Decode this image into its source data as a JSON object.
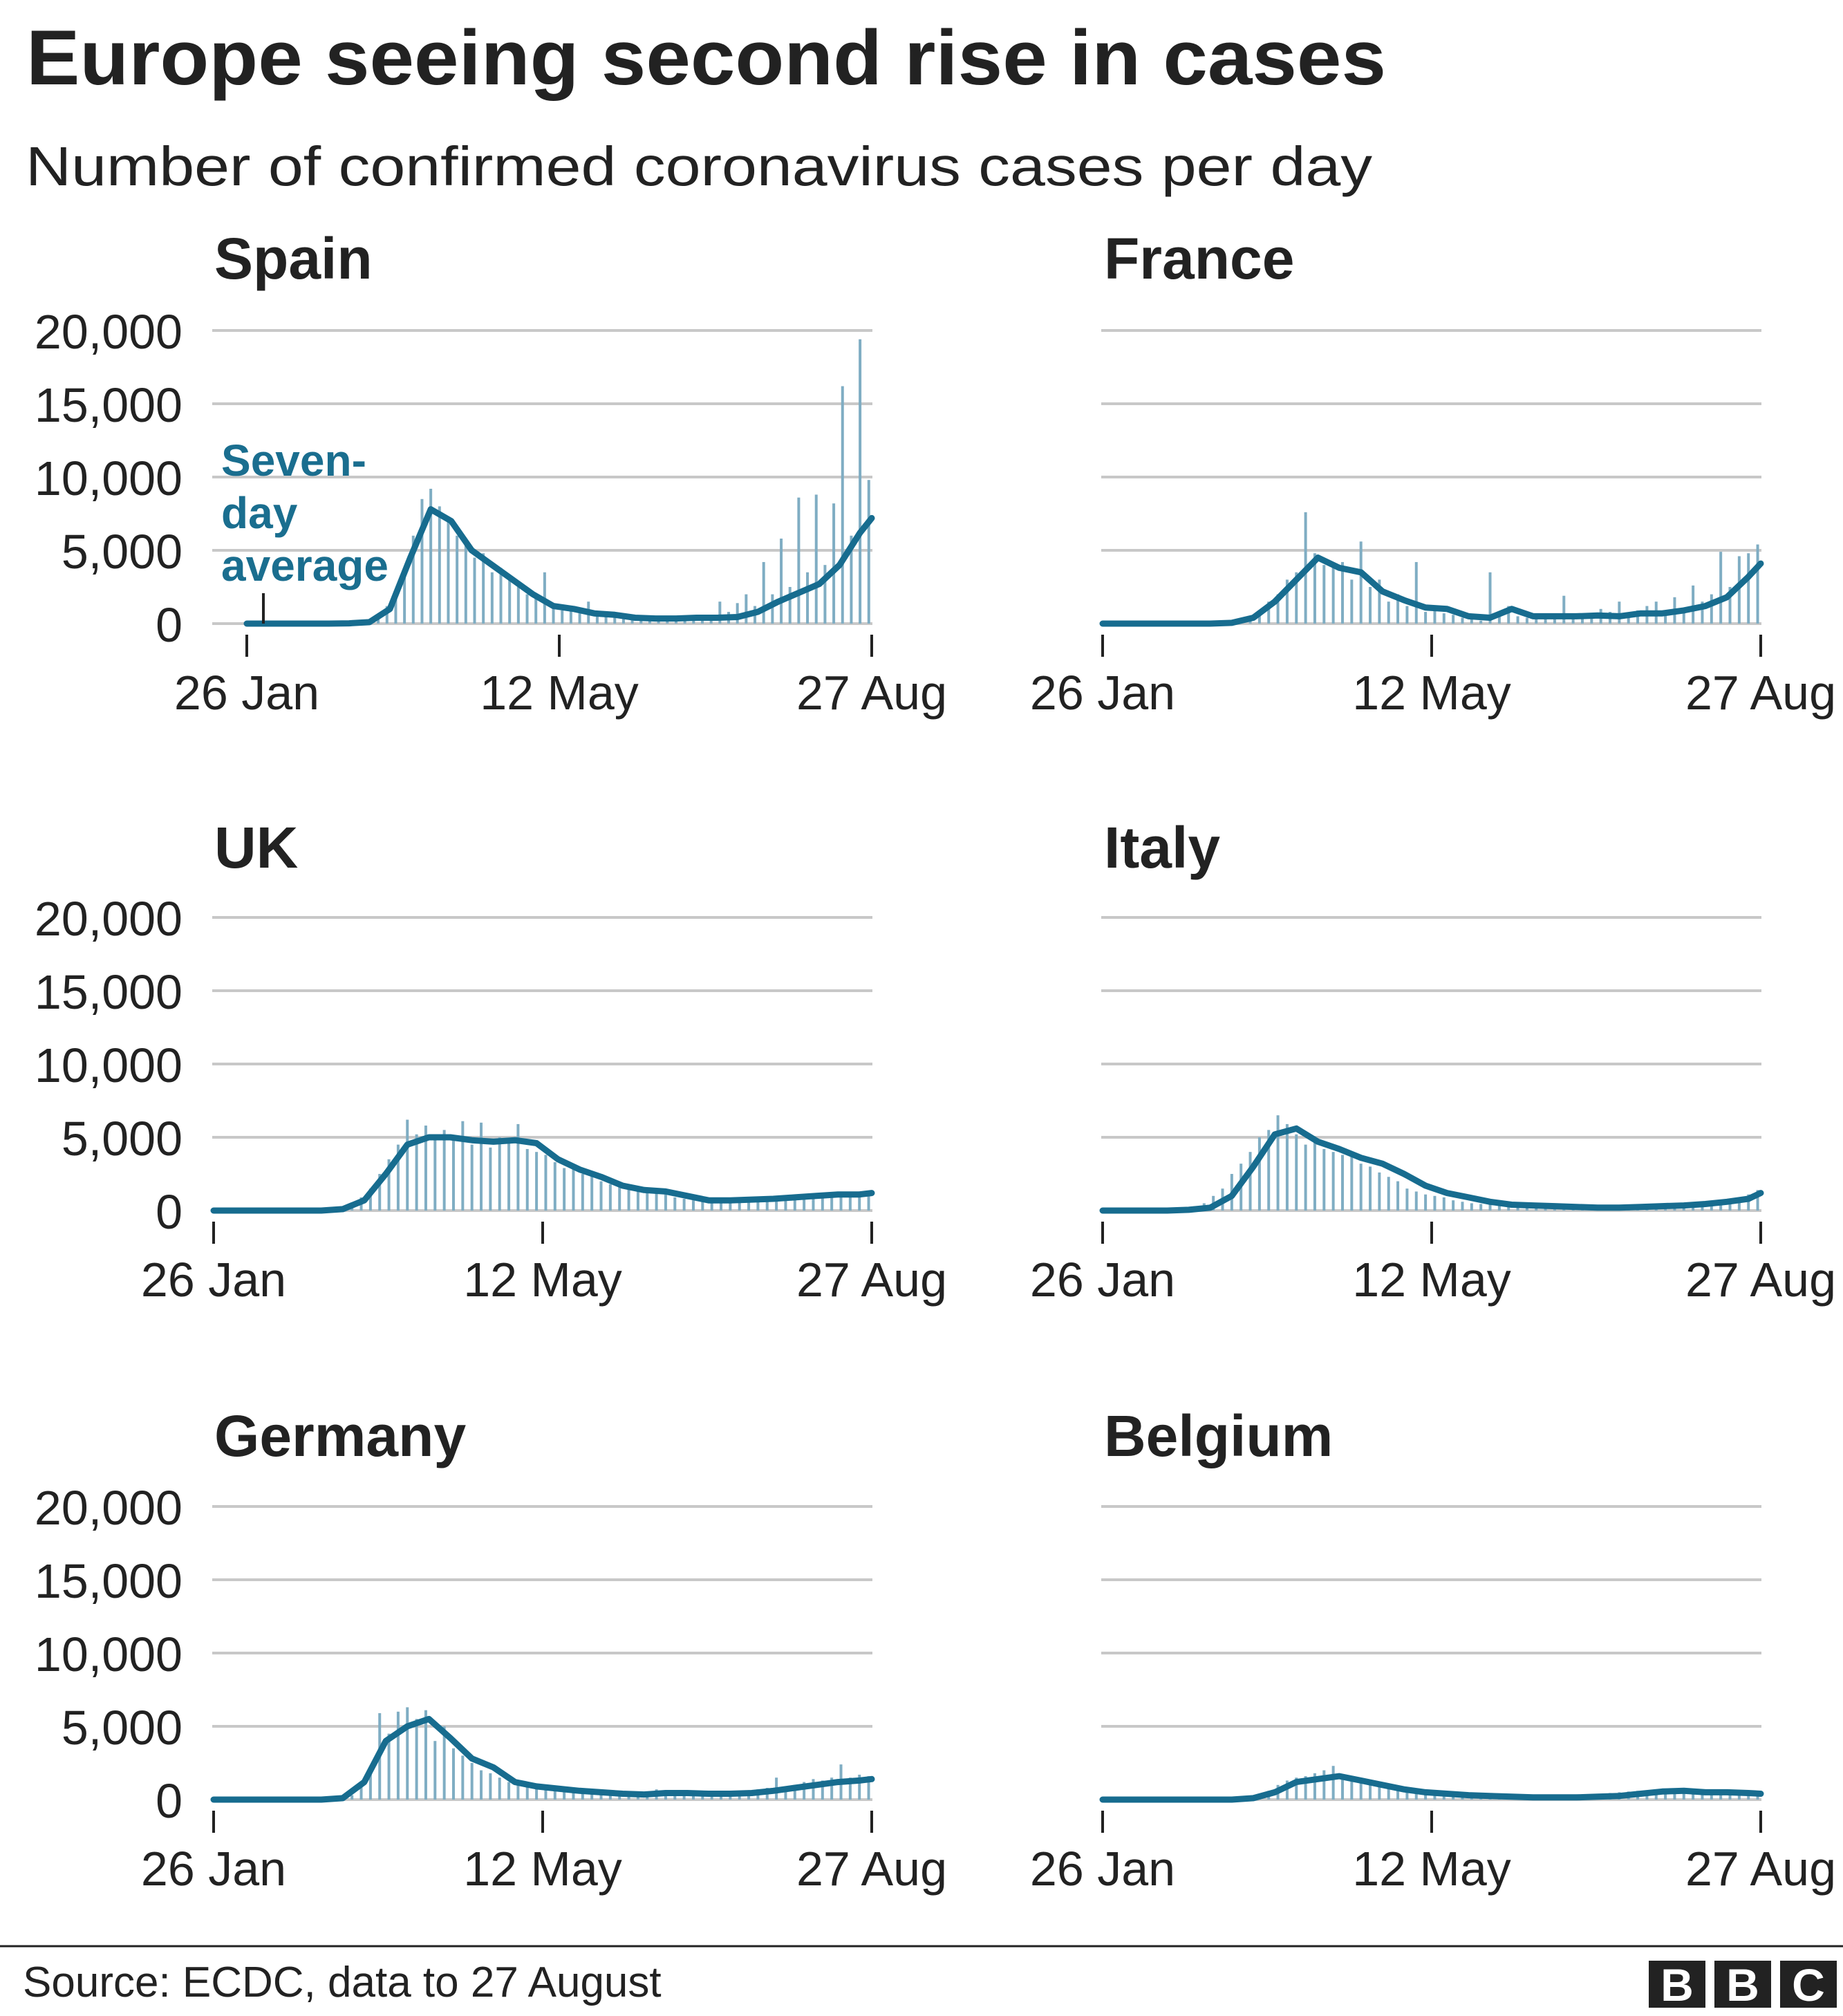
{
  "title": "Europe seeing second rise in cases",
  "subtitle": "Number of confirmed coronavirus cases per day",
  "source": "Source: ECDC, data to 27 August",
  "logo": {
    "letters": [
      "B",
      "B",
      "C"
    ]
  },
  "annotation": {
    "lines": [
      "Seven-",
      "day",
      "average"
    ]
  },
  "colors": {
    "line": "#176c8f",
    "bars": "#7fadc3",
    "grid": "#c8c8c8",
    "text": "#222222"
  },
  "chart_data": {
    "type": "bar+line",
    "title": "Europe seeing second rise in cases",
    "subtitle": "Number of confirmed coronavirus cases per day",
    "ylim": [
      0,
      20000
    ],
    "y_ticks": [
      0,
      5000,
      10000,
      15000,
      20000
    ],
    "y_tick_labels": [
      "0",
      "5,000",
      "10,000",
      "15,000",
      "20,000"
    ],
    "x_ticks_days": [
      0,
      107,
      214
    ],
    "x_tick_labels": [
      "26 Jan",
      "12 May",
      "27 Aug"
    ],
    "x_range_days": [
      0,
      214
    ],
    "grid": true,
    "legend": "Seven-day average annotation on Spain panel",
    "avg_days": [
      0,
      7,
      14,
      21,
      28,
      35,
      42,
      49,
      56,
      63,
      70,
      77,
      84,
      91,
      98,
      105,
      112,
      119,
      126,
      133,
      140,
      147,
      154,
      161,
      168,
      175,
      182,
      189,
      196,
      203,
      210,
      214
    ],
    "bar_day_step": 3,
    "panels": [
      {
        "name": "Spain",
        "avg": [
          0,
          0,
          0,
          0,
          0,
          20,
          100,
          1000,
          4500,
          7800,
          7000,
          5000,
          4000,
          3000,
          2000,
          1200,
          1000,
          700,
          600,
          400,
          350,
          350,
          400,
          400,
          450,
          800,
          1500,
          2100,
          2700,
          4000,
          6200,
          7200
        ],
        "daily": [
          0,
          0,
          0,
          0,
          0,
          0,
          0,
          0,
          0,
          0,
          0,
          0,
          50,
          150,
          300,
          600,
          1200,
          2000,
          3500,
          6000,
          8500,
          9200,
          8000,
          7000,
          6000,
          5500,
          4500,
          4800,
          3500,
          3800,
          3000,
          2500,
          2000,
          1800,
          3500,
          1000,
          900,
          1200,
          700,
          1500,
          600,
          500,
          400,
          350,
          300,
          400,
          350,
          300,
          400,
          350,
          400,
          500,
          450,
          600,
          1500,
          800,
          1400,
          2000,
          1200,
          4200,
          2000,
          5800,
          2500,
          8600,
          3500,
          8800,
          4000,
          8200,
          16200,
          6000,
          19400,
          9800
        ]
      },
      {
        "name": "France",
        "avg": [
          0,
          0,
          0,
          0,
          0,
          0,
          50,
          400,
          1500,
          3000,
          4500,
          3800,
          3500,
          2200,
          1600,
          1100,
          1000,
          500,
          400,
          1000,
          500,
          500,
          500,
          550,
          500,
          700,
          700,
          900,
          1200,
          1800,
          3200,
          4100
        ],
        "daily": [
          0,
          0,
          0,
          0,
          0,
          0,
          0,
          0,
          0,
          0,
          0,
          0,
          0,
          0,
          100,
          200,
          500,
          900,
          1500,
          2000,
          3000,
          3500,
          7600,
          4800,
          4000,
          3800,
          4200,
          3000,
          5600,
          2500,
          3000,
          1500,
          2000,
          1200,
          4200,
          800,
          900,
          700,
          600,
          400,
          300,
          200,
          3500,
          800,
          1200,
          500,
          400,
          500,
          600,
          300,
          1900,
          400,
          700,
          500,
          1000,
          800,
          1500,
          600,
          900,
          1200,
          1500,
          800,
          1800,
          1000,
          2600,
          1500,
          2000,
          4900,
          2500,
          4600,
          4800,
          5400
        ]
      },
      {
        "name": "UK",
        "avg": [
          0,
          0,
          0,
          0,
          0,
          0,
          100,
          700,
          2500,
          4500,
          5000,
          5000,
          4800,
          4700,
          4800,
          4600,
          3500,
          2800,
          2300,
          1700,
          1400,
          1300,
          1000,
          700,
          700,
          750,
          800,
          900,
          1000,
          1100,
          1100,
          1200
        ],
        "daily": [
          0,
          0,
          0,
          0,
          0,
          0,
          0,
          0,
          0,
          0,
          0,
          0,
          0,
          0,
          150,
          400,
          900,
          1500,
          2500,
          3500,
          4500,
          6200,
          5200,
          5800,
          4800,
          5500,
          5000,
          6100,
          4500,
          6000,
          4300,
          5000,
          4600,
          5900,
          4200,
          4000,
          3800,
          3300,
          2900,
          3000,
          2500,
          2600,
          2000,
          1800,
          1600,
          1500,
          1400,
          1300,
          1200,
          1100,
          900,
          800,
          700,
          700,
          650,
          700,
          750,
          800,
          700,
          900,
          850,
          900,
          1000,
          950,
          1000,
          1100,
          1050,
          1200,
          1100,
          1000,
          1300,
          1200
        ]
      },
      {
        "name": "Italy",
        "avg": [
          0,
          0,
          0,
          0,
          50,
          200,
          1000,
          3000,
          5200,
          5600,
          4700,
          4200,
          3600,
          3200,
          2500,
          1700,
          1200,
          900,
          600,
          400,
          350,
          300,
          250,
          200,
          200,
          250,
          300,
          350,
          450,
          600,
          800,
          1200
        ],
        "daily": [
          0,
          0,
          0,
          0,
          0,
          0,
          0,
          0,
          0,
          100,
          300,
          500,
          1000,
          1500,
          2500,
          3200,
          4000,
          5000,
          5500,
          6500,
          5900,
          5200,
          4500,
          4700,
          4200,
          4000,
          3800,
          3700,
          3200,
          3000,
          2600,
          2300,
          2000,
          1500,
          1300,
          1100,
          1000,
          900,
          700,
          600,
          500,
          450,
          400,
          350,
          350,
          300,
          300,
          250,
          250,
          200,
          200,
          200,
          200,
          200,
          220,
          250,
          250,
          280,
          300,
          300,
          350,
          350,
          400,
          400,
          450,
          500,
          600,
          650,
          800,
          900,
          1100,
          1400
        ]
      },
      {
        "name": "Germany",
        "avg": [
          0,
          0,
          0,
          0,
          0,
          0,
          100,
          1200,
          4000,
          5000,
          5500,
          4200,
          2800,
          2200,
          1200,
          900,
          750,
          600,
          500,
          400,
          350,
          450,
          450,
          400,
          400,
          450,
          600,
          800,
          1000,
          1200,
          1300,
          1400
        ],
        "daily": [
          0,
          0,
          0,
          0,
          0,
          0,
          0,
          0,
          0,
          0,
          0,
          0,
          0,
          0,
          100,
          300,
          1000,
          2000,
          5900,
          4500,
          6000,
          6300,
          5500,
          6100,
          4000,
          5000,
          3500,
          3000,
          2500,
          2000,
          1800,
          1500,
          1200,
          1000,
          900,
          800,
          700,
          700,
          600,
          550,
          500,
          450,
          400,
          400,
          350,
          350,
          400,
          500,
          700,
          500,
          450,
          400,
          400,
          400,
          400,
          450,
          500,
          550,
          600,
          700,
          800,
          1500,
          900,
          1000,
          1200,
          1400,
          1300,
          1500,
          2400,
          1500,
          1700,
          1600
        ]
      },
      {
        "name": "Belgium",
        "avg": [
          0,
          0,
          0,
          0,
          0,
          0,
          0,
          100,
          500,
          1200,
          1400,
          1600,
          1300,
          1000,
          700,
          500,
          400,
          300,
          250,
          200,
          150,
          150,
          150,
          200,
          250,
          400,
          550,
          600,
          500,
          500,
          450,
          400
        ],
        "daily": [
          0,
          0,
          0,
          0,
          0,
          0,
          0,
          0,
          0,
          0,
          0,
          0,
          0,
          0,
          0,
          0,
          100,
          300,
          600,
          1000,
          1300,
          1500,
          1600,
          1800,
          2000,
          2300,
          1700,
          1500,
          1400,
          1200,
          1000,
          900,
          700,
          600,
          500,
          450,
          400,
          350,
          300,
          300,
          250,
          250,
          200,
          200,
          180,
          150,
          150,
          150,
          150,
          170,
          200,
          250,
          300,
          350,
          400,
          450,
          500,
          550,
          600,
          600,
          650,
          600,
          550,
          500,
          500,
          500,
          450,
          450,
          400,
          400,
          400,
          400
        ]
      }
    ]
  }
}
